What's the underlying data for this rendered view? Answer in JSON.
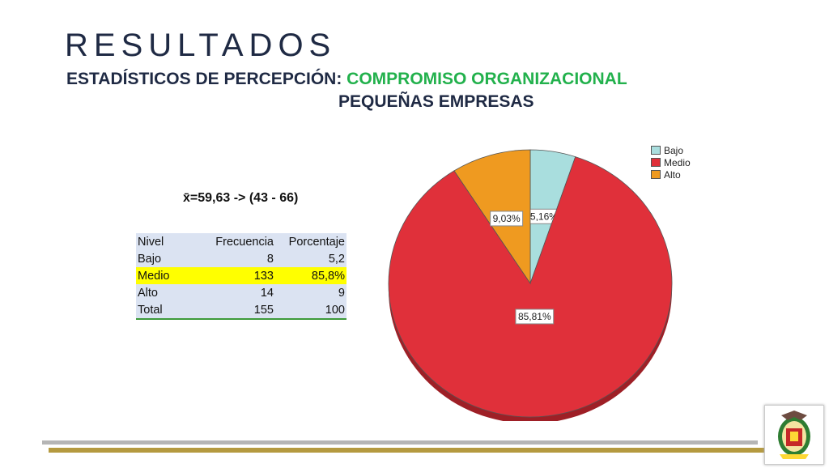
{
  "header": {
    "title": "RESULTADOS",
    "subtitle_prefix": "ESTADÍSTICOS DE PERCEPCIÓN:",
    "subtitle_highlight": "COMPROMISO ORGANIZACIONAL",
    "subtitle_line2": "PEQUEÑAS EMPRESAS"
  },
  "mean_text": "x̄=59,63 -> (43 - 66)",
  "table": {
    "headers": [
      "Nivel",
      "Frecuencia",
      "Porcentaje"
    ],
    "rows": [
      {
        "nivel": "Bajo",
        "frecuencia": "8",
        "porcentaje": "5,2"
      },
      {
        "nivel": "Medio",
        "frecuencia": "133",
        "porcentaje": "85,8%"
      },
      {
        "nivel": "Alto",
        "frecuencia": "14",
        "porcentaje": "9"
      },
      {
        "nivel": "Total",
        "frecuencia": "155",
        "porcentaje": "100"
      }
    ],
    "highlight_color": "#ffff00"
  },
  "chart_data": {
    "type": "pie",
    "slices": [
      {
        "label": "Bajo",
        "value": 5.16,
        "display": "5,16%",
        "color": "#a9dede"
      },
      {
        "label": "Medio",
        "value": 85.81,
        "display": "85,81%",
        "color": "#e0303a"
      },
      {
        "label": "Alto",
        "value": 9.03,
        "display": "9,03%",
        "color": "#ef9a20"
      }
    ],
    "legend": [
      "Bajo",
      "Medio",
      "Alto"
    ],
    "legend_position": "top-right"
  },
  "colors": {
    "title": "#1f2a44",
    "accent_green": "#22b14c",
    "bar_gray": "#b5b5b5",
    "bar_gold": "#b59a40"
  },
  "logo": {
    "icon": "university-crest-icon"
  }
}
